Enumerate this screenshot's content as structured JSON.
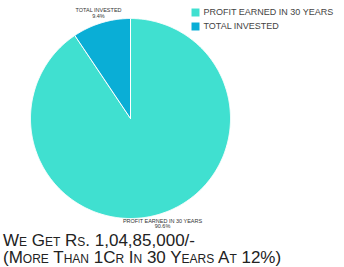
{
  "chart_data": {
    "type": "pie",
    "categories": [
      "PROFIT EARNED IN 30 YEARS",
      "TOTAL INVESTED"
    ],
    "values": [
      90.6,
      9.4
    ],
    "value_labels": [
      "90.6%",
      "9.4%"
    ],
    "colors": [
      "#40e0d0",
      "#0aaed6"
    ],
    "data_labels": true,
    "legend": "top-right",
    "annotations": [
      "We Get Rs. 1,04,85,000/-",
      "(More Than 1Cr In 30 Years At 12%)"
    ]
  }
}
